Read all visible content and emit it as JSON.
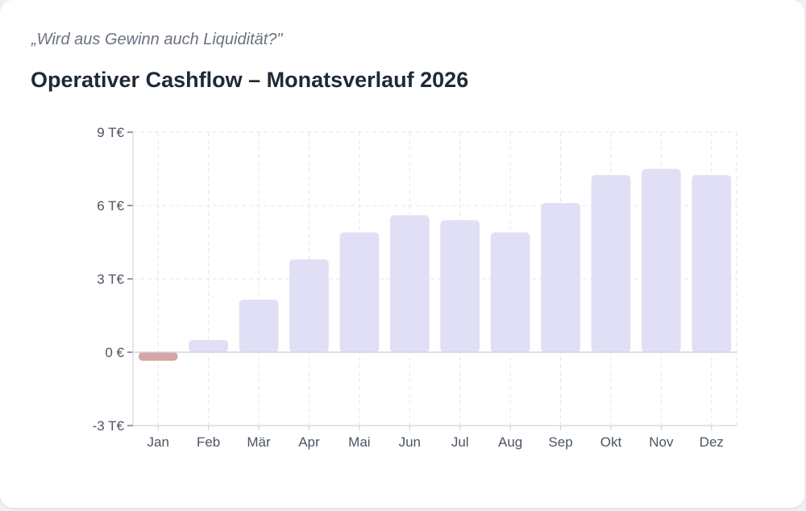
{
  "header": {
    "subtitle": "„Wird aus Gewinn auch Liquidität?\"",
    "title": "Operativer Cashflow – Monatsverlauf 2026"
  },
  "colors": {
    "positive_bar": "#e0dff5",
    "negative_bar": "#d5a6a2",
    "grid": "#e3e5ea",
    "axis": "#d1d5db",
    "tick_text": "#4b5563"
  },
  "chart_data": {
    "type": "bar",
    "categories": [
      "Jan",
      "Feb",
      "Mär",
      "Apr",
      "Mai",
      "Jun",
      "Jul",
      "Aug",
      "Sep",
      "Okt",
      "Nov",
      "Dez"
    ],
    "values": [
      -0.35,
      0.5,
      2.15,
      3.8,
      4.9,
      5.6,
      5.4,
      4.9,
      6.1,
      7.25,
      7.5,
      7.25
    ],
    "unit": "T€",
    "ylim": [
      -3,
      9
    ],
    "yticks": [
      -3,
      0,
      3,
      6,
      9
    ],
    "ytick_labels": [
      "-3 T€",
      "0 €",
      "3 T€",
      "6 T€",
      "9 T€"
    ],
    "xlabel": "",
    "ylabel": "",
    "grid": true,
    "legend": "none"
  }
}
